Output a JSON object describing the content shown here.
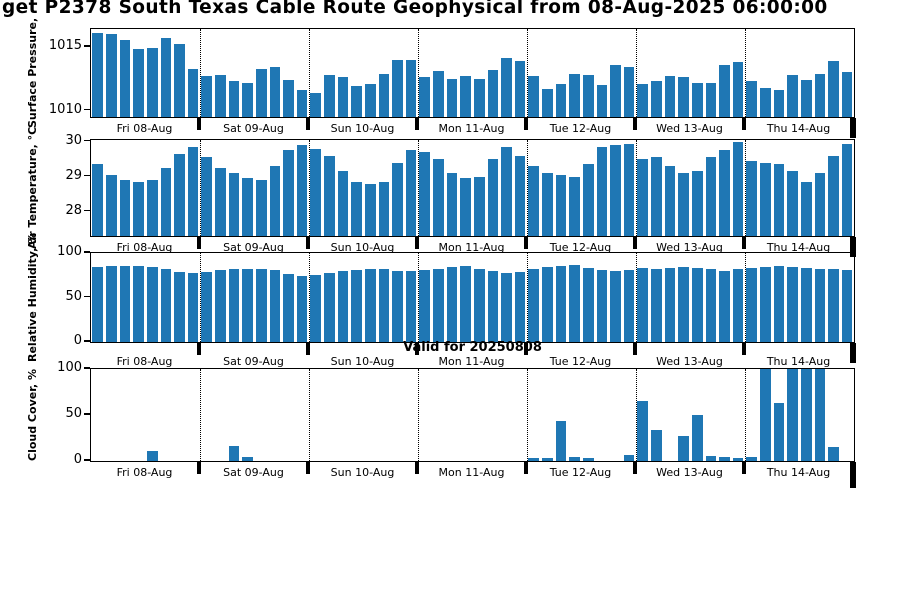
{
  "title": "get P2378 South Texas Cable Route Geophysical from 08-Aug-2025 06:00:00",
  "annotation": "Valid for 20250808",
  "colors": {
    "bar": "#1f77b4",
    "axis": "#000000"
  },
  "day_labels": [
    "Fri 08-Aug",
    "Sat 09-Aug",
    "Sun 10-Aug",
    "Mon 11-Aug",
    "Tue 12-Aug",
    "Wed 13-Aug",
    "Thu 14-Aug"
  ],
  "bars_per_day": 8,
  "chart_data": [
    {
      "type": "bar",
      "ylabel": "Surface Pressure,",
      "yticks": [
        1010,
        1015
      ],
      "ylim": [
        1009.5,
        1016.4
      ],
      "grid": "dotted vertical day separators",
      "legend": "none",
      "values": [
        1016.1,
        1016.0,
        1015.5,
        1014.8,
        1014.9,
        1015.7,
        1015.2,
        1013.3,
        1012.7,
        1012.8,
        1012.3,
        1012.2,
        1013.3,
        1013.4,
        1012.4,
        1011.6,
        1011.4,
        1012.8,
        1012.6,
        1011.9,
        1012.1,
        1012.9,
        1014.0,
        1014.0,
        1012.6,
        1013.1,
        1012.5,
        1012.7,
        1012.5,
        1013.2,
        1014.1,
        1013.9,
        1012.7,
        1011.7,
        1012.1,
        1012.9,
        1012.8,
        1012.0,
        1013.6,
        1013.4,
        1012.1,
        1012.3,
        1012.7,
        1012.6,
        1012.2,
        1012.2,
        1013.6,
        1013.8,
        1012.3,
        1011.8,
        1011.6,
        1012.8,
        1012.4,
        1012.9,
        1013.9,
        1013.0
      ]
    },
    {
      "type": "bar",
      "ylabel": "Air Temperature, °C",
      "yticks": [
        28,
        29,
        30
      ],
      "ylim": [
        27.3,
        30.05
      ],
      "grid": "dotted vertical day separators",
      "legend": "none",
      "values": [
        29.35,
        29.05,
        28.9,
        28.85,
        28.9,
        29.25,
        29.65,
        29.85,
        29.55,
        29.25,
        29.1,
        28.95,
        28.9,
        29.3,
        29.75,
        29.9,
        29.8,
        29.6,
        29.15,
        28.85,
        28.8,
        28.85,
        29.4,
        29.75,
        29.7,
        29.5,
        29.1,
        28.95,
        29.0,
        29.5,
        29.85,
        29.6,
        29.3,
        29.1,
        29.05,
        29.0,
        29.35,
        29.85,
        29.9,
        29.95,
        29.5,
        29.55,
        29.3,
        29.1,
        29.15,
        29.55,
        29.75,
        30.0,
        29.45,
        29.4,
        29.35,
        29.15,
        28.85,
        29.1,
        29.6,
        29.95
      ]
    },
    {
      "type": "bar",
      "ylabel": "Relative Humidity, %",
      "yticks": [
        0,
        50,
        100
      ],
      "ylim": [
        0,
        100
      ],
      "grid": "dotted vertical day separators",
      "legend": "none",
      "values": [
        84,
        85,
        85,
        85,
        84,
        82,
        79,
        77,
        79,
        81,
        82,
        82,
        82,
        81,
        76,
        74,
        75,
        78,
        80,
        81,
        82,
        82,
        80,
        80,
        81,
        82,
        84,
        85,
        82,
        80,
        78,
        79,
        82,
        84,
        85,
        86,
        83,
        81,
        80,
        81,
        83,
        82,
        83,
        84,
        83,
        82,
        80,
        82,
        83,
        84,
        85,
        84,
        83,
        82,
        82,
        81
      ]
    },
    {
      "type": "bar",
      "ylabel": "Cloud Cover, %",
      "yticks": [
        0,
        50,
        100
      ],
      "ylim": [
        0,
        100
      ],
      "grid": "dotted vertical day separators",
      "legend": "none",
      "values": [
        0,
        0,
        0,
        0,
        11,
        0,
        0,
        0,
        0,
        0,
        16,
        4,
        0,
        0,
        0,
        0,
        0,
        0,
        0,
        0,
        0,
        0,
        0,
        0,
        0,
        0,
        0,
        0,
        0,
        0,
        0,
        0,
        3,
        3,
        43,
        4,
        3,
        0,
        0,
        7,
        65,
        34,
        0,
        27,
        50,
        5,
        4,
        3,
        4,
        100,
        63,
        100,
        100,
        100,
        15,
        0
      ]
    }
  ]
}
